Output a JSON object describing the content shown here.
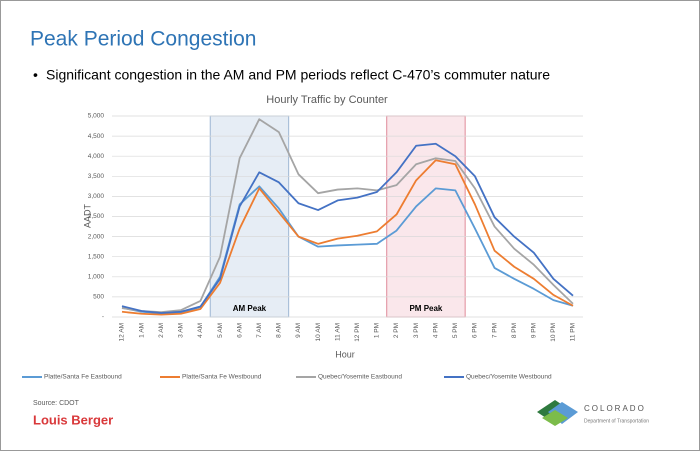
{
  "slide": {
    "title": "Peak Period Congestion",
    "bullet": "Significant congestion in the AM and PM periods reflect C-470’s commuter nature",
    "source": "Source: CDOT",
    "logo_left": "Louis Berger",
    "logo_right": {
      "name": "COLORADO",
      "subtitle": "Department of Transportation"
    }
  },
  "chart_data": {
    "type": "line",
    "title": "Hourly Traffic by Counter",
    "x_label": "Hour",
    "y_label": "AADT",
    "categories": [
      "12 AM",
      "1 AM",
      "2 AM",
      "3 AM",
      "4 AM",
      "5 AM",
      "6 AM",
      "7 AM",
      "8 AM",
      "9 AM",
      "10 AM",
      "11 AM",
      "12 PM",
      "1 PM",
      "2 PM",
      "3 PM",
      "4 PM",
      "5 PM",
      "6 PM",
      "7 PM",
      "8 PM",
      "9 PM",
      "10 PM",
      "11 PM"
    ],
    "series": [
      {
        "name": "Platte/Santa Fe Eastbound",
        "color": "#5b9bd5",
        "values": [
          230,
          130,
          90,
          110,
          250,
          1000,
          2800,
          3250,
          2700,
          2000,
          1750,
          1780,
          1800,
          1820,
          2150,
          2750,
          3200,
          3150,
          2200,
          1220,
          950,
          700,
          420,
          280
        ]
      },
      {
        "name": "Platte/Santa Fe Westbound",
        "color": "#ed7d31",
        "values": [
          130,
          80,
          60,
          80,
          200,
          850,
          2200,
          3200,
          2600,
          2000,
          1820,
          1950,
          2020,
          2130,
          2550,
          3400,
          3900,
          3800,
          2800,
          1650,
          1250,
          950,
          550,
          280
        ]
      },
      {
        "name": "Quebec/Yosemite Eastbound",
        "color": "#a5a5a5",
        "values": [
          220,
          150,
          120,
          170,
          400,
          1500,
          3950,
          4920,
          4600,
          3550,
          3080,
          3170,
          3200,
          3150,
          3280,
          3800,
          3950,
          3880,
          3200,
          2250,
          1700,
          1300,
          800,
          330
        ]
      },
      {
        "name": "Quebec/Yosemite Westbound",
        "color": "#4472c4",
        "values": [
          270,
          150,
          100,
          130,
          260,
          950,
          2750,
          3600,
          3350,
          2830,
          2660,
          2900,
          2970,
          3110,
          3600,
          4260,
          4310,
          4000,
          3500,
          2480,
          2000,
          1600,
          950,
          530
        ]
      }
    ],
    "annotations": [
      "AM Peak",
      "PM Peak"
    ],
    "ylim": [
      0,
      5000
    ],
    "yticks": [
      {
        "value": 0,
        "label": "-"
      },
      500,
      {
        "value": 1000,
        "label": "1,000"
      },
      {
        "value": 1500,
        "label": "1,500"
      },
      {
        "value": 2000,
        "label": "2,000"
      },
      {
        "value": 2500,
        "label": "2,500"
      },
      {
        "value": 3000,
        "label": "3,000"
      },
      {
        "value": 3500,
        "label": "3,500"
      },
      {
        "value": 4000,
        "label": "4,000"
      },
      {
        "value": 4500,
        "label": "4,500"
      },
      {
        "value": 5000,
        "label": "5,000"
      }
    ],
    "grid": true
  }
}
